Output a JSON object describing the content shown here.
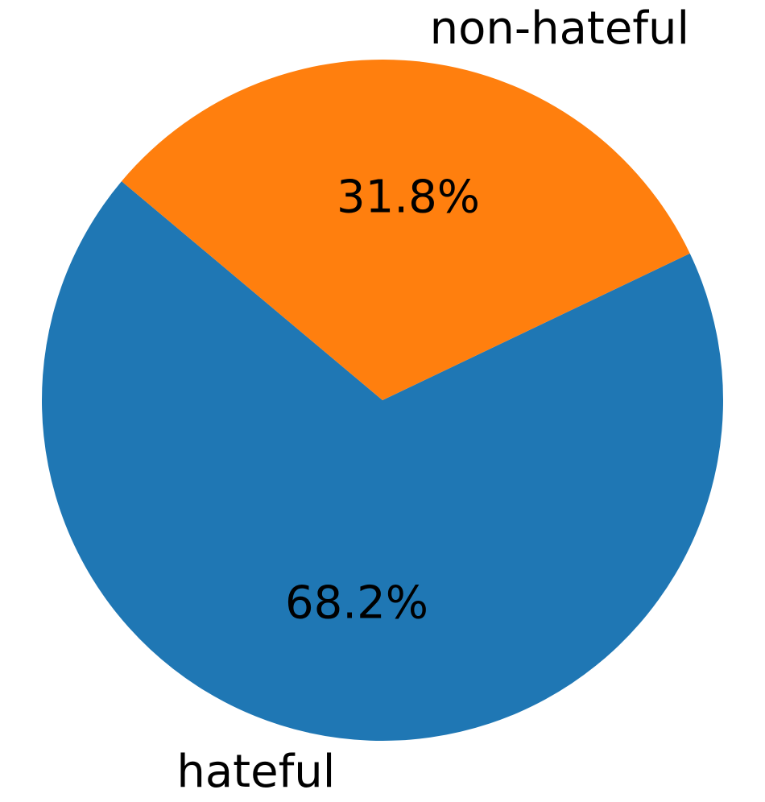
{
  "chart_data": {
    "type": "pie",
    "categories": [
      "hateful",
      "non-hateful"
    ],
    "values": [
      68.2,
      31.8
    ],
    "value_labels": [
      "68.2%",
      "31.8%"
    ],
    "colors": [
      "#1f77b4",
      "#ff7f0e"
    ],
    "start_angle_deg": 140,
    "direction": "counterclockwise",
    "title": "",
    "legend": "none"
  }
}
